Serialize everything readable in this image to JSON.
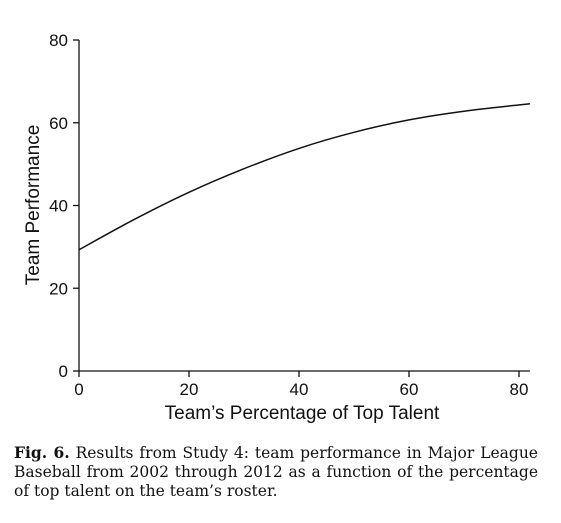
{
  "chart_data": {
    "type": "line",
    "xlabel": "Team’s Percentage of Top Talent",
    "ylabel": "Team Performance",
    "xlim": [
      0,
      82
    ],
    "ylim": [
      0,
      80
    ],
    "x_ticks": [
      0,
      20,
      40,
      60,
      80
    ],
    "y_ticks": [
      0,
      20,
      40,
      60,
      80
    ],
    "grid": false,
    "series": [
      {
        "x": [
          0,
          10,
          20,
          30,
          40,
          50,
          60,
          70,
          82
        ],
        "values": [
          29.3,
          36.6,
          43.2,
          48.9,
          53.8,
          57.7,
          60.7,
          62.8,
          64.6
        ]
      }
    ]
  },
  "caption": {
    "label": "Fig. 6.",
    "text": "Results from Study 4: team performance in Major League Baseball from 2002 through 2012 as a function of the percentage of top talent on the team’s roster."
  }
}
